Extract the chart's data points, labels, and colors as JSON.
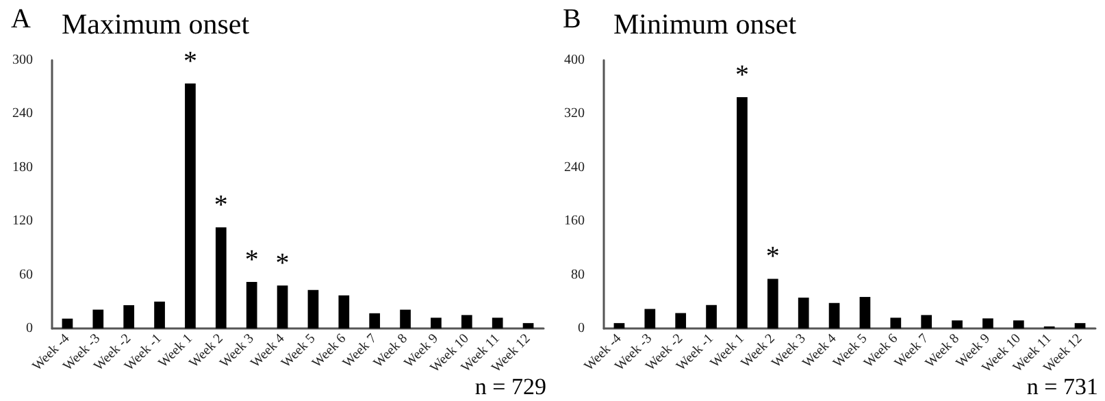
{
  "chart_data": [
    {
      "type": "bar",
      "title": "Maximum onset",
      "categories": [
        "Week -4",
        "Week -3",
        "Week -2",
        "Week -1",
        "Week 1",
        "Week 2",
        "Week 3",
        "Week 4",
        "Week 5",
        "Week 6",
        "Week 7",
        "Week 8",
        "Week 9",
        "Week 10",
        "Week 11",
        "Week 12"
      ],
      "values": [
        11,
        21,
        26,
        30,
        274,
        113,
        52,
        48,
        43,
        37,
        17,
        21,
        12,
        15,
        12,
        6
      ],
      "color": "#000000",
      "ylim": [
        0,
        300
      ],
      "yticks": [
        0,
        60,
        120,
        180,
        240,
        300
      ],
      "grid": false,
      "annotations": [
        "A",
        "n = 729",
        {
          "text": "*",
          "x": "Week 1",
          "y": 274
        },
        {
          "text": "*",
          "x": "Week 2",
          "y": 113
        },
        {
          "text": "*",
          "x": "Week 3",
          "y": 52
        },
        {
          "text": "*",
          "x": "Week 4",
          "y": 48
        }
      ]
    },
    {
      "type": "bar",
      "title": "Minimum onset",
      "categories": [
        "Week -4",
        "Week -3",
        "Week -2",
        "Week -1",
        "Week 1",
        "Week 2",
        "Week 3",
        "Week 4",
        "Week 5",
        "Week 6",
        "Week 7",
        "Week 8",
        "Week 9",
        "Week 10",
        "Week 11",
        "Week 12"
      ],
      "values": [
        8,
        29,
        23,
        35,
        345,
        74,
        46,
        38,
        47,
        16,
        20,
        12,
        15,
        12,
        3,
        8
      ],
      "color": "#000000",
      "ylim": [
        0,
        400
      ],
      "yticks": [
        0,
        80,
        160,
        240,
        320,
        400
      ],
      "grid": false,
      "annotations": [
        "B",
        "n = 731",
        {
          "text": "*",
          "x": "Week 1",
          "y": 345
        },
        {
          "text": "*",
          "x": "Week 2",
          "y": 74
        }
      ]
    }
  ]
}
